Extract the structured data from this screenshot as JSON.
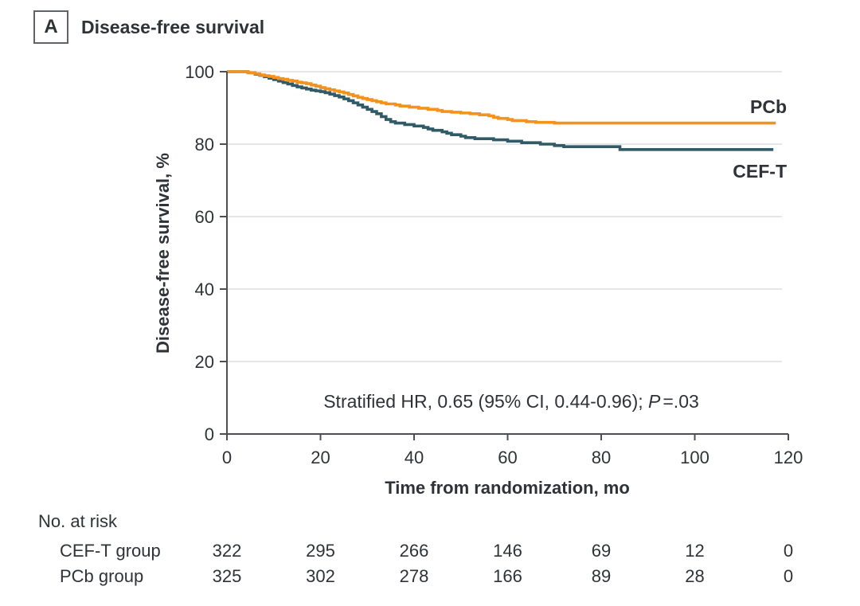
{
  "panel": {
    "label": "A",
    "title": "Disease-free survival"
  },
  "chart_data": {
    "type": "line",
    "step": true,
    "title": "Disease-free survival",
    "xlabel": "Time from randomization, mo",
    "ylabel": "Disease-free survival, %",
    "xlim": [
      0,
      120
    ],
    "ylim": [
      0,
      100
    ],
    "xticks": [
      "0",
      "20",
      "40",
      "60",
      "80",
      "100",
      "120"
    ],
    "yticks": [
      "0",
      "20",
      "40",
      "60",
      "80",
      "100"
    ],
    "grid": true,
    "legend_position": "right-of-curves",
    "annotation": {
      "prefix": "Stratified HR, 0.65 (95% CI, 0.44-0.96); ",
      "p_label": "P",
      "suffix": "=.03"
    },
    "series": [
      {
        "name": "CEF-T",
        "color": "#2F5A66",
        "end_time": 116.8,
        "points": [
          [
            0,
            100
          ],
          [
            4,
            100
          ],
          [
            4.5,
            99.7
          ],
          [
            6,
            99.3
          ],
          [
            7,
            99.0
          ],
          [
            8,
            98.6
          ],
          [
            9,
            98.2
          ],
          [
            10,
            97.8
          ],
          [
            11,
            97.4
          ],
          [
            12,
            97.0
          ],
          [
            13,
            96.6
          ],
          [
            14,
            96.2
          ],
          [
            15,
            95.8
          ],
          [
            16,
            95.5
          ],
          [
            17,
            95.2
          ],
          [
            18,
            94.9
          ],
          [
            19,
            94.7
          ],
          [
            20,
            94.5
          ],
          [
            21,
            94.2
          ],
          [
            22,
            93.8
          ],
          [
            23,
            93.4
          ],
          [
            24,
            93.0
          ],
          [
            25,
            92.5
          ],
          [
            26,
            92.0
          ],
          [
            27,
            91.4
          ],
          [
            28,
            90.8
          ],
          [
            29,
            90.2
          ],
          [
            30,
            89.6
          ],
          [
            31,
            89.0
          ],
          [
            32,
            88.4
          ],
          [
            33,
            87.6
          ],
          [
            34,
            86.8
          ],
          [
            35,
            86.2
          ],
          [
            36,
            85.8
          ],
          [
            38,
            85.4
          ],
          [
            40,
            85.0
          ],
          [
            42,
            84.6
          ],
          [
            43,
            84.2
          ],
          [
            44,
            83.8
          ],
          [
            46,
            83.4
          ],
          [
            47,
            83.0
          ],
          [
            48,
            82.6
          ],
          [
            50,
            82.2
          ],
          [
            51,
            81.8
          ],
          [
            53,
            81.5
          ],
          [
            57,
            81.2
          ],
          [
            60,
            80.8
          ],
          [
            63,
            80.4
          ],
          [
            67,
            80.0
          ],
          [
            70,
            79.6
          ],
          [
            72,
            79.3
          ],
          [
            84,
            78.5
          ],
          [
            116.8,
            78.5
          ]
        ]
      },
      {
        "name": "PCb",
        "color": "#F5921E",
        "end_time": 117.3,
        "points": [
          [
            0,
            100
          ],
          [
            4,
            100
          ],
          [
            4.5,
            99.7
          ],
          [
            6,
            99.4
          ],
          [
            7,
            99.1
          ],
          [
            8,
            98.9
          ],
          [
            9,
            98.7
          ],
          [
            10,
            98.4
          ],
          [
            11,
            98.1
          ],
          [
            12,
            97.9
          ],
          [
            13,
            97.6
          ],
          [
            14,
            97.4
          ],
          [
            15,
            97.1
          ],
          [
            16,
            96.9
          ],
          [
            17,
            96.7
          ],
          [
            18,
            96.3
          ],
          [
            19,
            96.0
          ],
          [
            20,
            95.6
          ],
          [
            21,
            95.3
          ],
          [
            22,
            95.0
          ],
          [
            23,
            94.7
          ],
          [
            24,
            94.4
          ],
          [
            25,
            94.1
          ],
          [
            26,
            93.7
          ],
          [
            27,
            93.3
          ],
          [
            28,
            92.9
          ],
          [
            29,
            92.6
          ],
          [
            30,
            92.3
          ],
          [
            31,
            92.0
          ],
          [
            32,
            91.7
          ],
          [
            33,
            91.4
          ],
          [
            34,
            91.1
          ],
          [
            36,
            90.8
          ],
          [
            37,
            90.5
          ],
          [
            39,
            90.2
          ],
          [
            41,
            89.9
          ],
          [
            43,
            89.6
          ],
          [
            45,
            89.3
          ],
          [
            46,
            89.0
          ],
          [
            48,
            88.8
          ],
          [
            50,
            88.6
          ],
          [
            52,
            88.4
          ],
          [
            54,
            88.1
          ],
          [
            56,
            87.8
          ],
          [
            57,
            87.4
          ],
          [
            58,
            87.1
          ],
          [
            60,
            86.8
          ],
          [
            61,
            86.5
          ],
          [
            64,
            86.2
          ],
          [
            66,
            86.0
          ],
          [
            70,
            85.8
          ],
          [
            117.3,
            85.8
          ]
        ]
      }
    ],
    "curve_labels": [
      {
        "text": "PCb",
        "series": "PCb"
      },
      {
        "text": "CEF-T",
        "series": "CEF-T"
      }
    ],
    "risk_table": {
      "header": "No. at risk",
      "time_points": [
        0,
        20,
        40,
        60,
        80,
        100,
        120
      ],
      "rows": [
        {
          "label": "CEF-T group",
          "values": [
            "322",
            "295",
            "266",
            "146",
            "69",
            "12",
            "0"
          ]
        },
        {
          "label": "PCb group",
          "values": [
            "325",
            "302",
            "278",
            "166",
            "89",
            "28",
            "0"
          ]
        }
      ]
    }
  },
  "colors": {
    "pcb_orange": "#F5921E",
    "ceft_teal": "#2F5A66",
    "gridline": "#E3E3E4",
    "axis": "#4E4F53",
    "text": "#2F3237"
  }
}
